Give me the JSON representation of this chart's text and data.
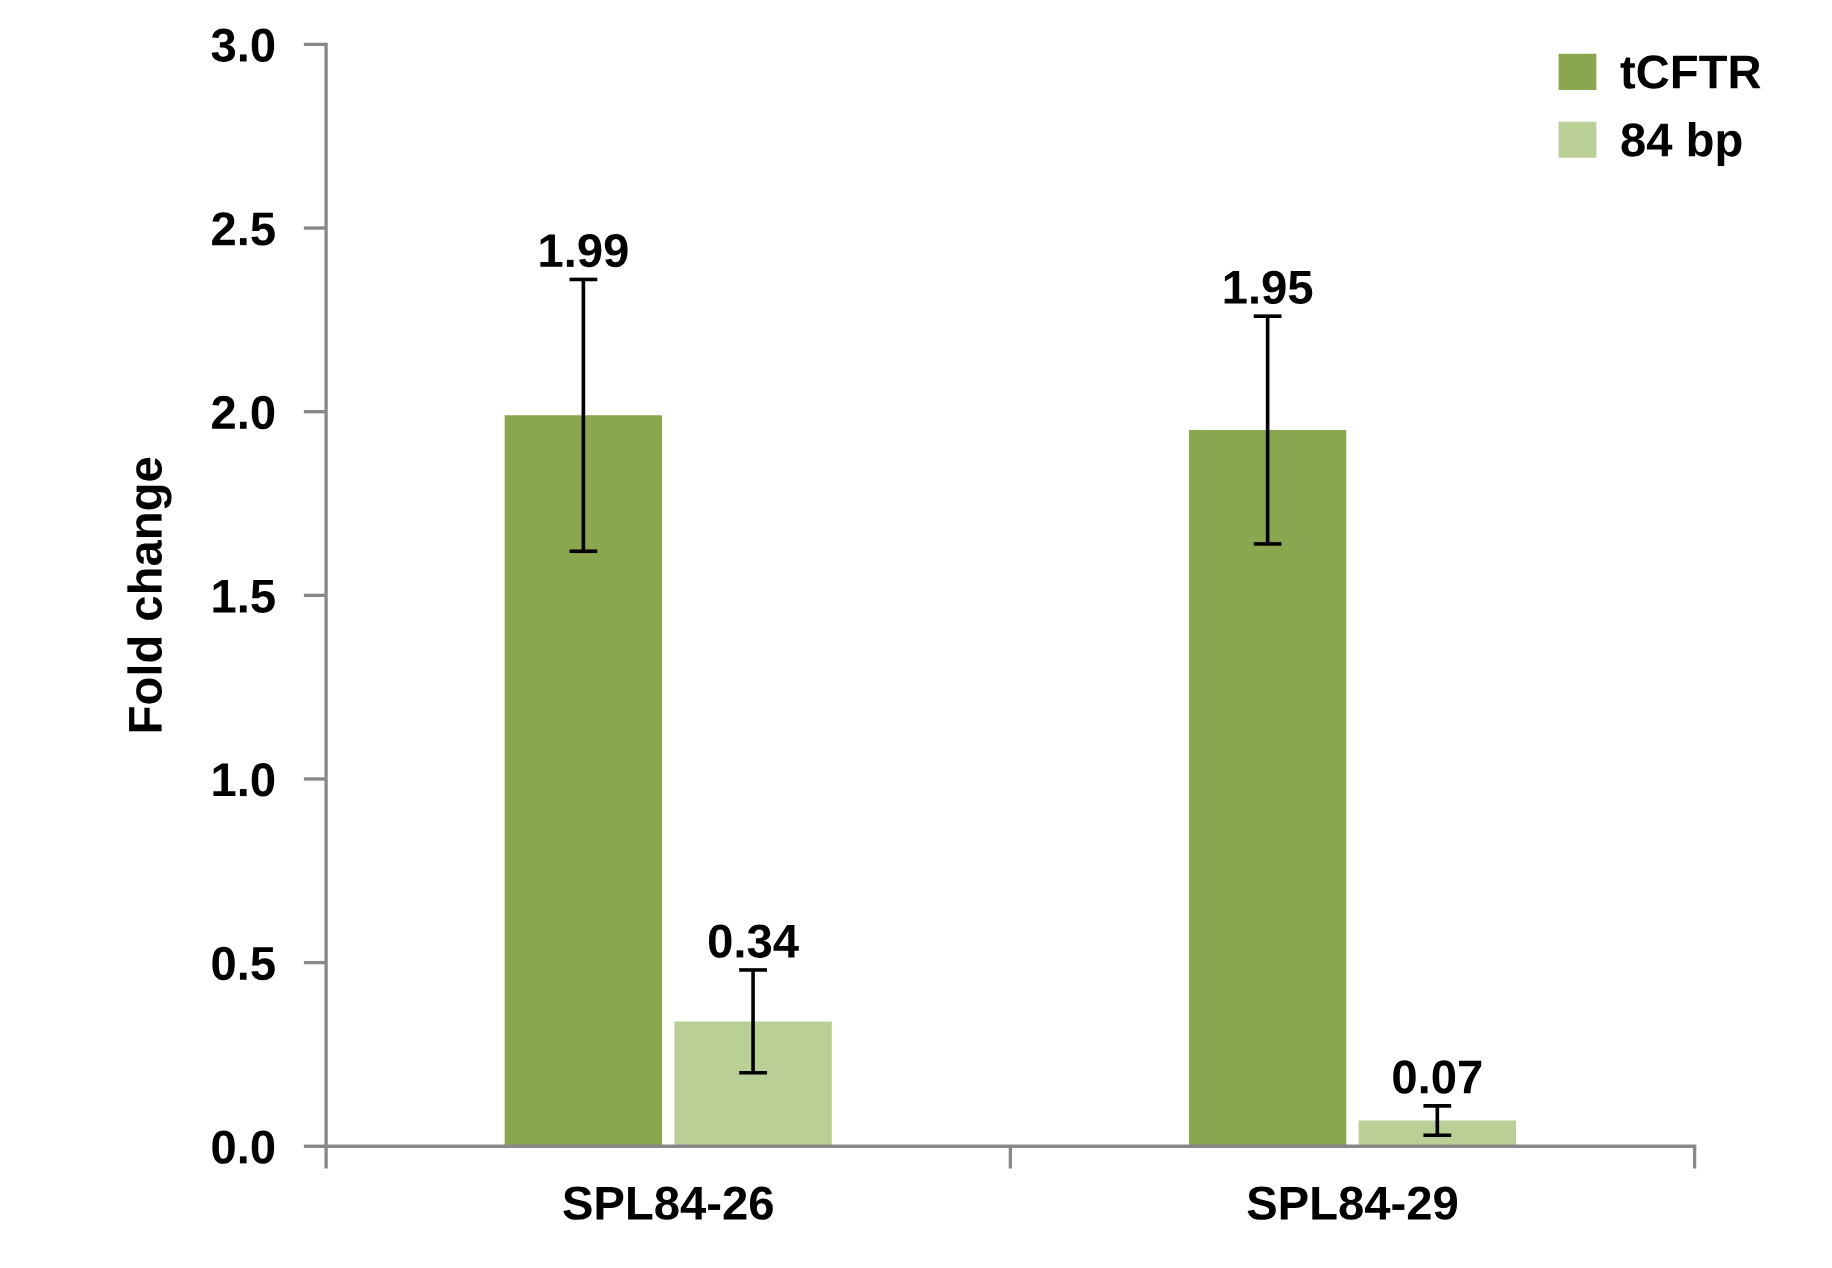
{
  "chart_data": {
    "type": "bar",
    "ylabel": "Fold change",
    "categories": [
      "SPL84-26",
      "SPL84-29"
    ],
    "series": [
      {
        "name": "tCFTR",
        "color": "#8aa64f",
        "values": [
          1.99,
          1.95
        ],
        "errors": [
          0.37,
          0.31
        ]
      },
      {
        "name": "84 bp",
        "color": "#b9cf95",
        "values": [
          0.34,
          0.07
        ],
        "errors": [
          0.14,
          0.04
        ]
      }
    ],
    "ylim": [
      0,
      3.0
    ],
    "yticks": [
      {
        "value": 0,
        "label": "0.0"
      },
      0.5,
      {
        "value": 1,
        "label": "1.0"
      },
      1.5,
      {
        "value": 2,
        "label": "2.0"
      },
      2.5,
      {
        "value": 3,
        "label": "3.0"
      }
    ],
    "data_labels": true,
    "grid": false,
    "legend": "top right"
  }
}
